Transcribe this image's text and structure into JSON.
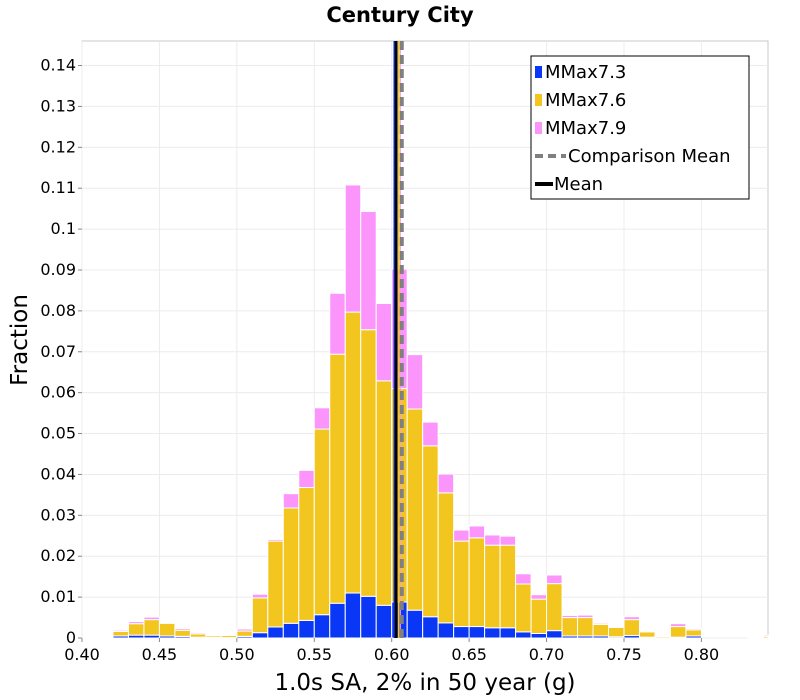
{
  "chart_data": {
    "type": "bar",
    "stacked": true,
    "title": "Century City",
    "xlabel": "1.0s SA, 2% in 50 year (g)",
    "ylabel": "Fraction",
    "xlim": [
      0.4,
      0.843
    ],
    "ylim": [
      0,
      0.146
    ],
    "xticks": [
      "0.40",
      "0.45",
      "0.50",
      "0.55",
      "0.60",
      "0.65",
      "0.70",
      "0.75",
      "0.80"
    ],
    "yticks": [
      "0",
      "0.01",
      "0.02",
      "0.03",
      "0.04",
      "0.05",
      "0.06",
      "0.07",
      "0.08",
      "0.09",
      "0.1",
      "0.11",
      "0.12",
      "0.13",
      "0.14"
    ],
    "grid": true,
    "legend_position": "top-right",
    "bin_width": 0.01,
    "bin_centers": [
      0.405,
      0.415,
      0.425,
      0.435,
      0.445,
      0.455,
      0.465,
      0.475,
      0.485,
      0.495,
      0.505,
      0.515,
      0.525,
      0.535,
      0.545,
      0.555,
      0.565,
      0.575,
      0.585,
      0.595,
      0.605,
      0.615,
      0.625,
      0.635,
      0.645,
      0.655,
      0.665,
      0.675,
      0.685,
      0.695,
      0.705,
      0.715,
      0.725,
      0.735,
      0.745,
      0.755,
      0.765,
      0.775,
      0.785,
      0.795,
      0.805,
      0.815,
      0.825,
      0.835,
      0.845
    ],
    "series": [
      {
        "name": "MMax7.3",
        "color": "#0a36f5",
        "values": [
          0,
          0.0002,
          0.0005,
          0.0007,
          0.0007,
          0.0005,
          0.0004,
          0.0002,
          0.0002,
          0.0001,
          0.0004,
          0.0013,
          0.0027,
          0.0036,
          0.0043,
          0.0057,
          0.0085,
          0.011,
          0.0102,
          0.008,
          0.0088,
          0.0068,
          0.0052,
          0.0037,
          0.0028,
          0.0028,
          0.0025,
          0.0025,
          0.0015,
          0.0011,
          0.0018,
          0.0005,
          0.0005,
          0.0005,
          0.0003,
          0.0006,
          0.0002,
          0,
          0.0002,
          0.0005,
          0,
          0,
          0,
          0,
          0
        ]
      },
      {
        "name": "MMax7.6",
        "color": "#f2c61f",
        "values": [
          0.0001,
          0.0002,
          0.0011,
          0.0028,
          0.0038,
          0.0031,
          0.0015,
          0.0008,
          0.0004,
          0.0005,
          0.0013,
          0.0085,
          0.021,
          0.0282,
          0.0325,
          0.0454,
          0.0609,
          0.0687,
          0.0652,
          0.0549,
          0.0522,
          0.0492,
          0.0418,
          0.0318,
          0.0209,
          0.0217,
          0.0202,
          0.0202,
          0.0117,
          0.0084,
          0.0115,
          0.0045,
          0.0045,
          0.0028,
          0.0023,
          0.0039,
          0.0013,
          0.0003,
          0.0026,
          0.0015,
          0,
          0,
          0,
          0.0002,
          0.0004
        ]
      },
      {
        "name": "MMax7.9",
        "color": "#fb95fb",
        "values": [
          0,
          0.0001,
          0.0003,
          0.0005,
          0.0006,
          0.0002,
          0.0004,
          0.0003,
          0.0001,
          0.0001,
          0.0005,
          0.0009,
          0.0004,
          0.0035,
          0.0042,
          0.0052,
          0.0149,
          0.0311,
          0.0289,
          0.0189,
          0.0292,
          0.0133,
          0.0058,
          0.0046,
          0.0027,
          0.0029,
          0.0025,
          0.0022,
          0.0025,
          0.0011,
          0.0021,
          0.0005,
          0.0006,
          0.0003,
          0.0002,
          0.0007,
          0.0001,
          0,
          0.0007,
          0.0003,
          0,
          0,
          0,
          0.0001,
          0.0003
        ]
      }
    ],
    "lines": [
      {
        "name": "Comparison Mean",
        "x": 0.6065,
        "color": "#808080",
        "style": "dashed"
      },
      {
        "name": "Mean",
        "x": 0.6025,
        "color": "#000000",
        "style": "solid"
      }
    ],
    "mean_overlay_colors": [
      "#0a36f5",
      "#f2c61f",
      "#fb95fb"
    ]
  }
}
